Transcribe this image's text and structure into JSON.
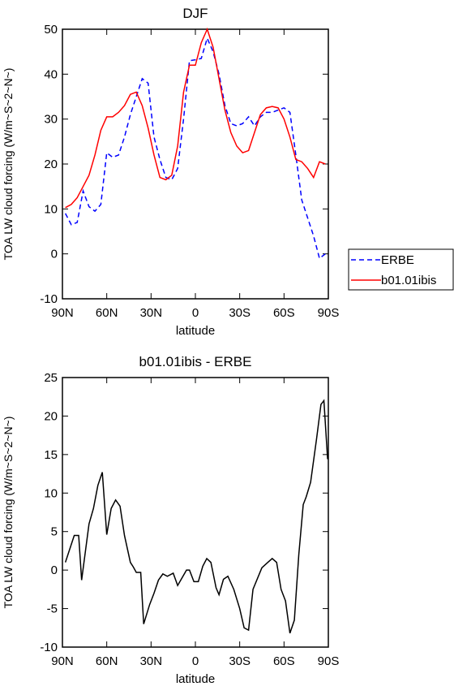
{
  "chart_data": [
    {
      "type": "line",
      "title": "DJF",
      "xlabel": "latitude",
      "ylabel": "TOA LW cloud forcing (W/m~S~2~N~)",
      "x": [
        88,
        84,
        80,
        76,
        72,
        68,
        64,
        60,
        56,
        52,
        48,
        44,
        40,
        36,
        32,
        28,
        24,
        20,
        16,
        12,
        8,
        4,
        0,
        -4,
        -8,
        -12,
        -16,
        -20,
        -24,
        -28,
        -32,
        -36,
        -40,
        -44,
        -48,
        -52,
        -56,
        -60,
        -64,
        -68,
        -72,
        -76,
        -80,
        -84,
        -88
      ],
      "xlim": [
        90,
        -90
      ],
      "xticks": [
        {
          "value": 90,
          "label": "90N"
        },
        {
          "value": 60,
          "label": "60N"
        },
        {
          "value": 30,
          "label": "30N"
        },
        0,
        {
          "value": -30,
          "label": "30S"
        },
        {
          "value": -60,
          "label": "60S"
        },
        {
          "value": -90,
          "label": "90S"
        }
      ],
      "ylim": [
        -10,
        50
      ],
      "yticks": [
        -10,
        0,
        10,
        20,
        30,
        40,
        50
      ],
      "legend": "right",
      "series": [
        {
          "name": "ERBE",
          "color": "#0000ff",
          "linestyle": "dashed",
          "values": [
            9,
            6.5,
            7,
            14,
            10.5,
            9.5,
            11,
            22.5,
            21.5,
            22,
            26,
            31,
            35,
            39,
            38,
            26,
            21,
            17,
            16.5,
            19,
            30,
            43,
            43.2,
            43.5,
            48,
            45,
            40,
            33,
            29,
            28.5,
            29,
            30.5,
            28.5,
            30.5,
            31.5,
            31.5,
            32,
            32.5,
            31.5,
            22,
            12,
            8,
            4,
            -1,
            0
          ]
        },
        {
          "name": "b01.01ibis",
          "color": "#ff0000",
          "linestyle": "solid",
          "values": [
            10.3,
            11,
            12.5,
            15,
            17.5,
            22,
            27.5,
            30.5,
            30.5,
            31.5,
            33,
            35.5,
            36,
            33,
            28,
            22,
            17,
            16.5,
            17.5,
            24,
            36,
            42,
            42,
            47,
            50,
            46,
            39,
            32,
            27,
            24,
            22.5,
            23,
            27,
            31,
            32.5,
            32.8,
            32.5,
            30,
            26,
            21,
            20.5,
            19,
            17,
            20.5,
            20
          ]
        }
      ]
    },
    {
      "type": "line",
      "title": "b01.01ibis - ERBE",
      "xlabel": "latitude",
      "ylabel": "TOA LW cloud forcing (W/m~S~2~N~)",
      "x": [
        88,
        82,
        79,
        77,
        72,
        69,
        66,
        63,
        60,
        57,
        54,
        51,
        48,
        44,
        42,
        40,
        37,
        35,
        31,
        28,
        25,
        22,
        19,
        15,
        12,
        6,
        4,
        1,
        -2,
        -5,
        -7.7,
        -10.5,
        -14,
        -16,
        -19,
        -22,
        -26,
        -30,
        -33,
        -36,
        -39,
        -45,
        -49,
        -52,
        -55,
        -58,
        -61,
        -64,
        -67,
        -70,
        -73,
        -75,
        -78,
        -82,
        -85,
        -87,
        -89.5
      ],
      "xlim": [
        90,
        -90
      ],
      "xticks": [
        {
          "value": 90,
          "label": "90N"
        },
        {
          "value": 60,
          "label": "60N"
        },
        {
          "value": 30,
          "label": "30N"
        },
        0,
        {
          "value": -30,
          "label": "30S"
        },
        {
          "value": -60,
          "label": "60S"
        },
        {
          "value": -90,
          "label": "90S"
        }
      ],
      "ylim": [
        -10,
        25
      ],
      "yticks": [
        -10,
        -5,
        0,
        5,
        10,
        15,
        20,
        25
      ],
      "series": [
        {
          "color": "#000000",
          "linestyle": "solid",
          "values": [
            1,
            4.5,
            4.5,
            -1.3,
            6,
            8,
            11,
            12.7,
            4.6,
            8,
            9.1,
            8.3,
            4.5,
            1,
            0.4,
            -0.3,
            -0.3,
            -7,
            -4.5,
            -3,
            -1.3,
            -0.5,
            -0.8,
            -0.4,
            -2,
            0,
            0,
            -1.5,
            -1.5,
            0.5,
            1.5,
            1,
            -2.3,
            -3.2,
            -1.2,
            -0.8,
            -2.5,
            -5,
            -7.5,
            -7.8,
            -2.5,
            0.3,
            1,
            1.5,
            1,
            -2.5,
            -4,
            -8.2,
            -6.5,
            2,
            8.5,
            9.5,
            11.4,
            17,
            21.5,
            22,
            14.4
          ]
        }
      ]
    }
  ]
}
